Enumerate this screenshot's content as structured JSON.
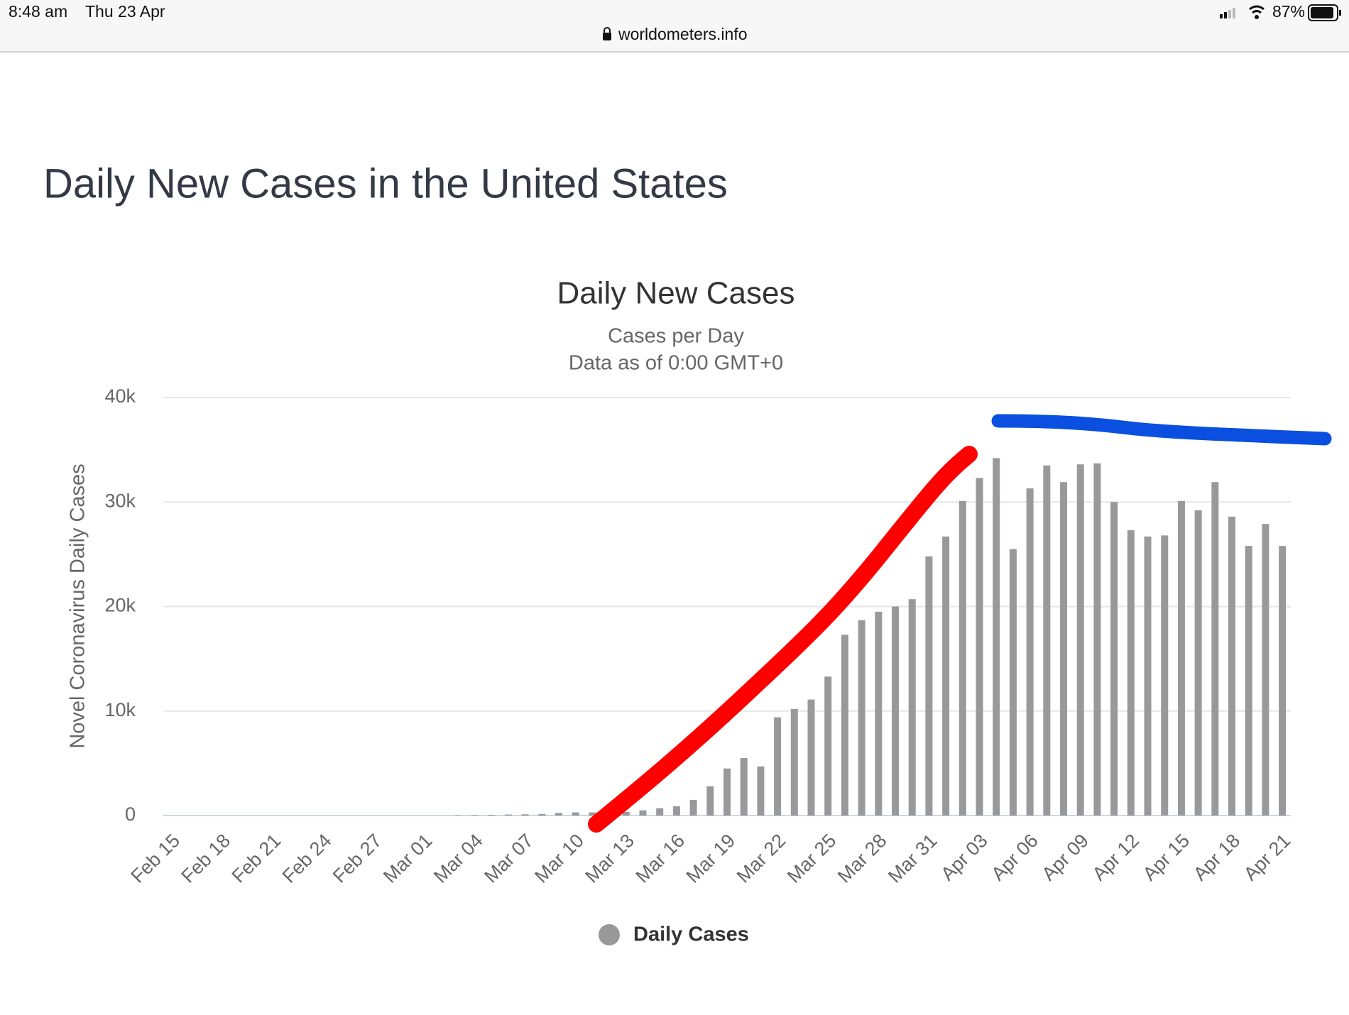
{
  "status_bar": {
    "time": "8:48 am",
    "date": "Thu 23 Apr",
    "url": "worldometers.info",
    "battery": "87%"
  },
  "page_title": "Daily New Cases in the United States",
  "chart_data": {
    "type": "bar",
    "title": "Daily New Cases",
    "subtitle": [
      "Cases per Day",
      "Data as of 0:00 GMT+0"
    ],
    "y_label": "Novel Coronavirus Daily Cases",
    "categories": [
      "Feb 15",
      null,
      null,
      "Feb 18",
      null,
      null,
      "Feb 21",
      null,
      null,
      "Feb 24",
      null,
      null,
      "Feb 27",
      null,
      null,
      "Mar 01",
      null,
      null,
      "Mar 04",
      null,
      null,
      "Mar 07",
      null,
      null,
      "Mar 10",
      null,
      null,
      "Mar 13",
      null,
      null,
      "Mar 16",
      null,
      null,
      "Mar 19",
      null,
      null,
      "Mar 22",
      null,
      null,
      "Mar 25",
      null,
      null,
      "Mar 28",
      null,
      null,
      "Mar 31",
      null,
      null,
      "Apr 03",
      null,
      null,
      "Apr 06",
      null,
      null,
      "Apr 09",
      null,
      null,
      "Apr 12",
      null,
      null,
      "Apr 15",
      null,
      null,
      "Apr 18",
      null,
      null,
      "Apr 21"
    ],
    "series": [
      {
        "name": "Daily Cases",
        "color": "#999999",
        "values": [
          0,
          0,
          0,
          0,
          0,
          0,
          0,
          0,
          0,
          0,
          0,
          0,
          0,
          0,
          0,
          0,
          0,
          30,
          50,
          70,
          100,
          120,
          150,
          250,
          300,
          300,
          400,
          350,
          500,
          700,
          900,
          1500,
          2800,
          4500,
          5500,
          4700,
          9400,
          10200,
          11100,
          13300,
          17300,
          18700,
          19500,
          20000,
          20700,
          24800,
          26700,
          30100,
          32300,
          34200,
          25500,
          31300,
          33500,
          31900,
          33600,
          33700,
          30000,
          27300,
          26700,
          26800,
          30100,
          29200,
          31900,
          28600,
          25800,
          27900,
          25800
        ]
      }
    ],
    "ylim": [
      0,
      40000
    ],
    "yticks": [
      0,
      {
        "value": 10000,
        "label": "10k"
      },
      {
        "value": 20000,
        "label": "20k"
      },
      {
        "value": 30000,
        "label": "30k"
      },
      {
        "value": 40000,
        "label": "40k"
      }
    ],
    "grid": true
  }
}
